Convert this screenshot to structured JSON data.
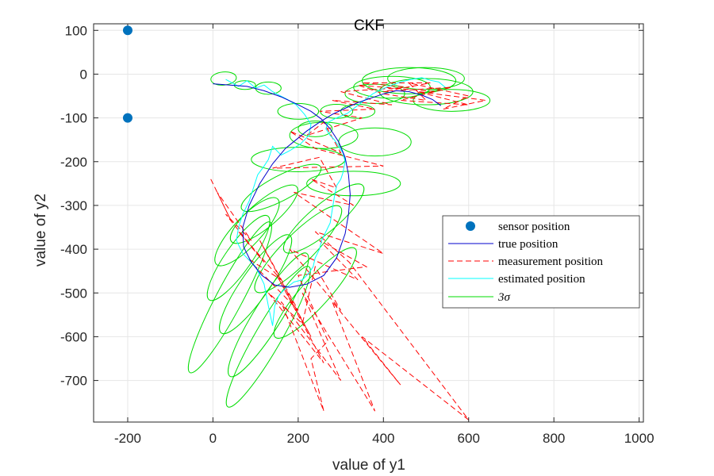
{
  "chart_data": {
    "type": "line",
    "title": "CKF",
    "xlabel": "value of y1",
    "ylabel": "value of y2",
    "xlim": [
      -280,
      1010
    ],
    "ylim": [
      -795,
      115
    ],
    "xticks": [
      -200,
      0,
      200,
      400,
      600,
      800,
      1000
    ],
    "yticks": [
      100,
      0,
      -100,
      -200,
      -300,
      -400,
      -500,
      -600,
      -700
    ],
    "xtick_labels": [
      "-200",
      "0",
      "200",
      "400",
      "600",
      "800",
      "1000"
    ],
    "ytick_labels": [
      "100",
      "0",
      "-100",
      "-200",
      "-300",
      "-400",
      "-500",
      "-600",
      "-700"
    ],
    "grid": true,
    "legend_position": "right",
    "colors": {
      "sensor": "#0072BD",
      "true": "#0000CC",
      "measurement": "#FF0000",
      "estimated": "#00FFFF",
      "sigma": "#00DD00",
      "grid": "#E6E6E6",
      "axis": "#262626"
    },
    "legend": [
      {
        "key": "sensor",
        "label": "sensor position"
      },
      {
        "key": "true",
        "label": "true position"
      },
      {
        "key": "measurement",
        "label": "measurement position"
      },
      {
        "key": "estimated",
        "label": "estimated position"
      },
      {
        "key": "sigma",
        "label": "3σ"
      }
    ],
    "series": [
      {
        "key": "sensor",
        "kind": "scatter",
        "points": [
          [
            -200,
            100
          ],
          [
            -200,
            -100
          ]
        ]
      },
      {
        "key": "true",
        "kind": "line",
        "points": [
          [
            0,
            -22
          ],
          [
            40,
            -25
          ],
          [
            80,
            -28
          ],
          [
            120,
            -38
          ],
          [
            160,
            -52
          ],
          [
            200,
            -70
          ],
          [
            230,
            -85
          ],
          [
            255,
            -103
          ],
          [
            275,
            -125
          ],
          [
            295,
            -155
          ],
          [
            310,
            -190
          ],
          [
            318,
            -230
          ],
          [
            322,
            -275
          ],
          [
            318,
            -320
          ],
          [
            310,
            -365
          ],
          [
            290,
            -420
          ],
          [
            260,
            -460
          ],
          [
            220,
            -480
          ],
          [
            180,
            -487
          ],
          [
            145,
            -482
          ],
          [
            115,
            -460
          ],
          [
            90,
            -430
          ],
          [
            72,
            -395
          ],
          [
            70,
            -350
          ],
          [
            85,
            -300
          ],
          [
            110,
            -250
          ],
          [
            140,
            -205
          ],
          [
            170,
            -170
          ],
          [
            195,
            -150
          ],
          [
            220,
            -130
          ],
          [
            250,
            -110
          ],
          [
            280,
            -92
          ],
          [
            310,
            -78
          ],
          [
            340,
            -65
          ],
          [
            370,
            -55
          ],
          [
            400,
            -45
          ],
          [
            430,
            -38
          ],
          [
            460,
            -40
          ],
          [
            490,
            -48
          ],
          [
            515,
            -58
          ],
          [
            535,
            -72
          ]
        ]
      },
      {
        "key": "measurement",
        "kind": "dashed",
        "points": [
          [
            -5,
            -240
          ],
          [
            40,
            -330
          ],
          [
            10,
            -270
          ],
          [
            90,
            -380
          ],
          [
            30,
            -320
          ],
          [
            120,
            -430
          ],
          [
            60,
            -360
          ],
          [
            160,
            -470
          ],
          [
            80,
            -420
          ],
          [
            200,
            -540
          ],
          [
            110,
            -380
          ],
          [
            230,
            -600
          ],
          [
            150,
            -460
          ],
          [
            260,
            -660
          ],
          [
            130,
            -500
          ],
          [
            210,
            -570
          ],
          [
            240,
            -440
          ],
          [
            300,
            -540
          ],
          [
            180,
            -400
          ],
          [
            340,
            -470
          ],
          [
            250,
            -380
          ],
          [
            360,
            -440
          ],
          [
            200,
            -460
          ],
          [
            270,
            -610
          ],
          [
            230,
            -650
          ],
          [
            260,
            -770
          ],
          [
            160,
            -520
          ],
          [
            300,
            -700
          ],
          [
            210,
            -500
          ],
          [
            380,
            -770
          ],
          [
            280,
            -520
          ],
          [
            440,
            -710
          ],
          [
            350,
            -600
          ],
          [
            600,
            -790
          ],
          [
            320,
            -430
          ],
          [
            240,
            -360
          ],
          [
            400,
            -410
          ],
          [
            190,
            -270
          ],
          [
            330,
            -300
          ],
          [
            230,
            -240
          ],
          [
            290,
            -260
          ],
          [
            250,
            -190
          ],
          [
            140,
            -215
          ],
          [
            400,
            -210
          ],
          [
            240,
            -170
          ],
          [
            180,
            -130
          ],
          [
            300,
            -180
          ],
          [
            260,
            -110
          ],
          [
            220,
            -140
          ],
          [
            350,
            -100
          ],
          [
            250,
            -85
          ],
          [
            380,
            -80
          ],
          [
            280,
            -60
          ],
          [
            420,
            -70
          ],
          [
            300,
            -40
          ],
          [
            460,
            -30
          ],
          [
            350,
            -20
          ],
          [
            510,
            -20
          ],
          [
            400,
            -40
          ],
          [
            560,
            -30
          ],
          [
            440,
            -60
          ],
          [
            600,
            -70
          ],
          [
            480,
            -40
          ],
          [
            640,
            -60
          ],
          [
            540,
            -80
          ],
          [
            600,
            -50
          ],
          [
            460,
            -20
          ],
          [
            500,
            -60
          ],
          [
            400,
            -45
          ],
          [
            340,
            -25
          ],
          [
            520,
            -40
          ]
        ]
      },
      {
        "key": "estimated",
        "kind": "line",
        "points": [
          [
            30,
            -12
          ],
          [
            60,
            -28
          ],
          [
            80,
            -15
          ],
          [
            100,
            -32
          ],
          [
            120,
            -25
          ],
          [
            140,
            -40
          ],
          [
            155,
            -48
          ],
          [
            175,
            -58
          ],
          [
            195,
            -70
          ],
          [
            215,
            -92
          ],
          [
            230,
            -115
          ],
          [
            225,
            -140
          ],
          [
            205,
            -160
          ],
          [
            180,
            -175
          ],
          [
            160,
            -185
          ],
          [
            140,
            -165
          ],
          [
            130,
            -195
          ],
          [
            120,
            -210
          ],
          [
            105,
            -230
          ],
          [
            95,
            -260
          ],
          [
            85,
            -290
          ],
          [
            70,
            -320
          ],
          [
            60,
            -350
          ],
          [
            55,
            -380
          ],
          [
            70,
            -410
          ],
          [
            100,
            -440
          ],
          [
            120,
            -480
          ],
          [
            130,
            -530
          ],
          [
            140,
            -575
          ],
          [
            145,
            -530
          ],
          [
            155,
            -505
          ],
          [
            170,
            -490
          ],
          [
            190,
            -475
          ],
          [
            210,
            -470
          ],
          [
            225,
            -455
          ],
          [
            235,
            -440
          ],
          [
            240,
            -420
          ],
          [
            250,
            -400
          ],
          [
            255,
            -380
          ],
          [
            265,
            -360
          ],
          [
            275,
            -340
          ],
          [
            280,
            -310
          ],
          [
            285,
            -280
          ],
          [
            290,
            -255
          ],
          [
            300,
            -240
          ],
          [
            305,
            -225
          ],
          [
            310,
            -200
          ],
          [
            305,
            -180
          ],
          [
            295,
            -165
          ],
          [
            285,
            -150
          ],
          [
            275,
            -140
          ],
          [
            265,
            -125
          ],
          [
            270,
            -110
          ],
          [
            290,
            -100
          ],
          [
            315,
            -90
          ],
          [
            335,
            -75
          ],
          [
            355,
            -60
          ],
          [
            375,
            -45
          ],
          [
            395,
            -35
          ],
          [
            420,
            -25
          ],
          [
            440,
            -18
          ],
          [
            465,
            -12
          ],
          [
            490,
            -8
          ],
          [
            510,
            -14
          ],
          [
            530,
            -18
          ],
          [
            545,
            -30
          ]
        ]
      }
    ],
    "ellipses": [
      {
        "cx": 25,
        "cy": -10,
        "rx": 30,
        "ry": 15,
        "angle": -5
      },
      {
        "cx": 75,
        "cy": -25,
        "rx": 25,
        "ry": 10,
        "angle": 0
      },
      {
        "cx": 130,
        "cy": -32,
        "rx": 30,
        "ry": 14,
        "angle": 0
      },
      {
        "cx": 200,
        "cy": -85,
        "rx": 48,
        "ry": 18,
        "angle": 0
      },
      {
        "cx": 290,
        "cy": -85,
        "rx": 38,
        "ry": 16,
        "angle": 0
      },
      {
        "cx": 240,
        "cy": -125,
        "rx": 40,
        "ry": 18,
        "angle": 0
      },
      {
        "cx": 340,
        "cy": -85,
        "rx": 40,
        "ry": 16,
        "angle": 0
      },
      {
        "cx": 380,
        "cy": -155,
        "rx": 85,
        "ry": 32,
        "angle": 0
      },
      {
        "cx": 260,
        "cy": -140,
        "rx": 80,
        "ry": 30,
        "angle": 0
      },
      {
        "cx": 200,
        "cy": -195,
        "rx": 110,
        "ry": 28,
        "angle": 0
      },
      {
        "cx": 330,
        "cy": -250,
        "rx": 110,
        "ry": 28,
        "angle": 0
      },
      {
        "cx": 160,
        "cy": -260,
        "rx": 105,
        "ry": 28,
        "angle": -28
      },
      {
        "cx": 120,
        "cy": -320,
        "rx": 100,
        "ry": 30,
        "angle": -40
      },
      {
        "cx": 80,
        "cy": -360,
        "rx": 105,
        "ry": 32,
        "angle": -47
      },
      {
        "cx": 260,
        "cy": -330,
        "rx": 120,
        "ry": 32,
        "angle": -40
      },
      {
        "cx": 60,
        "cy": -420,
        "rx": 120,
        "ry": 30,
        "angle": -55
      },
      {
        "cx": 200,
        "cy": -400,
        "rx": 140,
        "ry": 34,
        "angle": -45
      },
      {
        "cx": 100,
        "cy": -480,
        "rx": 140,
        "ry": 32,
        "angle": -55
      },
      {
        "cx": 240,
        "cy": -500,
        "rx": 140,
        "ry": 32,
        "angle": -48
      },
      {
        "cx": 130,
        "cy": -550,
        "rx": 170,
        "ry": 32,
        "angle": -58
      },
      {
        "cx": 130,
        "cy": -600,
        "rx": 190,
        "ry": 30,
        "angle": -60
      },
      {
        "cx": 40,
        "cy": -510,
        "rx": 200,
        "ry": 30,
        "angle": -62
      },
      {
        "cx": 460,
        "cy": -15,
        "rx": 110,
        "ry": 30,
        "angle": 0
      },
      {
        "cx": 420,
        "cy": -30,
        "rx": 90,
        "ry": 25,
        "angle": 0
      },
      {
        "cx": 500,
        "cy": -40,
        "rx": 110,
        "ry": 30,
        "angle": 0
      },
      {
        "cx": 560,
        "cy": -60,
        "rx": 90,
        "ry": 25,
        "angle": 0
      },
      {
        "cx": 380,
        "cy": -45,
        "rx": 70,
        "ry": 22,
        "angle": 0
      },
      {
        "cx": 500,
        "cy": -10,
        "rx": 90,
        "ry": 25,
        "angle": 0
      }
    ]
  }
}
